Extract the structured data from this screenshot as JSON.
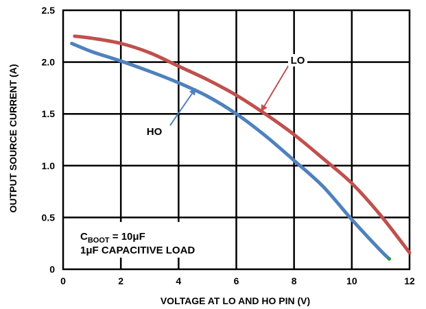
{
  "chart_data": {
    "type": "line",
    "xlabel": "VOLTAGE AT LO AND HO PIN (V)",
    "ylabel": "OUTPUT SOURCE CURRENT (A)",
    "xlim": [
      0,
      12
    ],
    "ylim": [
      0,
      2.5
    ],
    "x_ticks": [
      "0",
      "2",
      "4",
      "6",
      "8",
      "10",
      "12"
    ],
    "y_ticks": [
      "0",
      "0.5",
      "1.0",
      "1.5",
      "2.0",
      "2.5"
    ],
    "grid": true,
    "series": [
      {
        "name": "LO",
        "color": "#c0504d",
        "x": [
          0.4,
          1,
          2,
          3,
          4,
          5,
          6,
          7,
          8,
          9,
          10,
          11,
          12
        ],
        "y": [
          2.25,
          2.23,
          2.18,
          2.09,
          1.96,
          1.83,
          1.68,
          1.5,
          1.3,
          1.07,
          0.83,
          0.52,
          0.16
        ]
      },
      {
        "name": "HO",
        "color": "#4f81bd",
        "x": [
          0.3,
          1,
          2,
          3,
          4,
          5,
          6,
          7,
          8,
          9,
          10,
          11,
          11.3
        ],
        "y": [
          2.18,
          2.1,
          2.01,
          1.91,
          1.8,
          1.67,
          1.5,
          1.29,
          1.05,
          0.8,
          0.48,
          0.18,
          0.1
        ]
      }
    ],
    "annotations": [
      {
        "text": "LO",
        "target_x": 6.85,
        "target_y": 1.52
      },
      {
        "text": "HO",
        "target_x": 4.6,
        "target_y": 1.75
      }
    ],
    "note": {
      "c_prefix": "C",
      "c_subscript": "BOOT",
      "c_suffix": " = 10μF",
      "line2": "1μF CAPACITIVE LOAD"
    }
  }
}
